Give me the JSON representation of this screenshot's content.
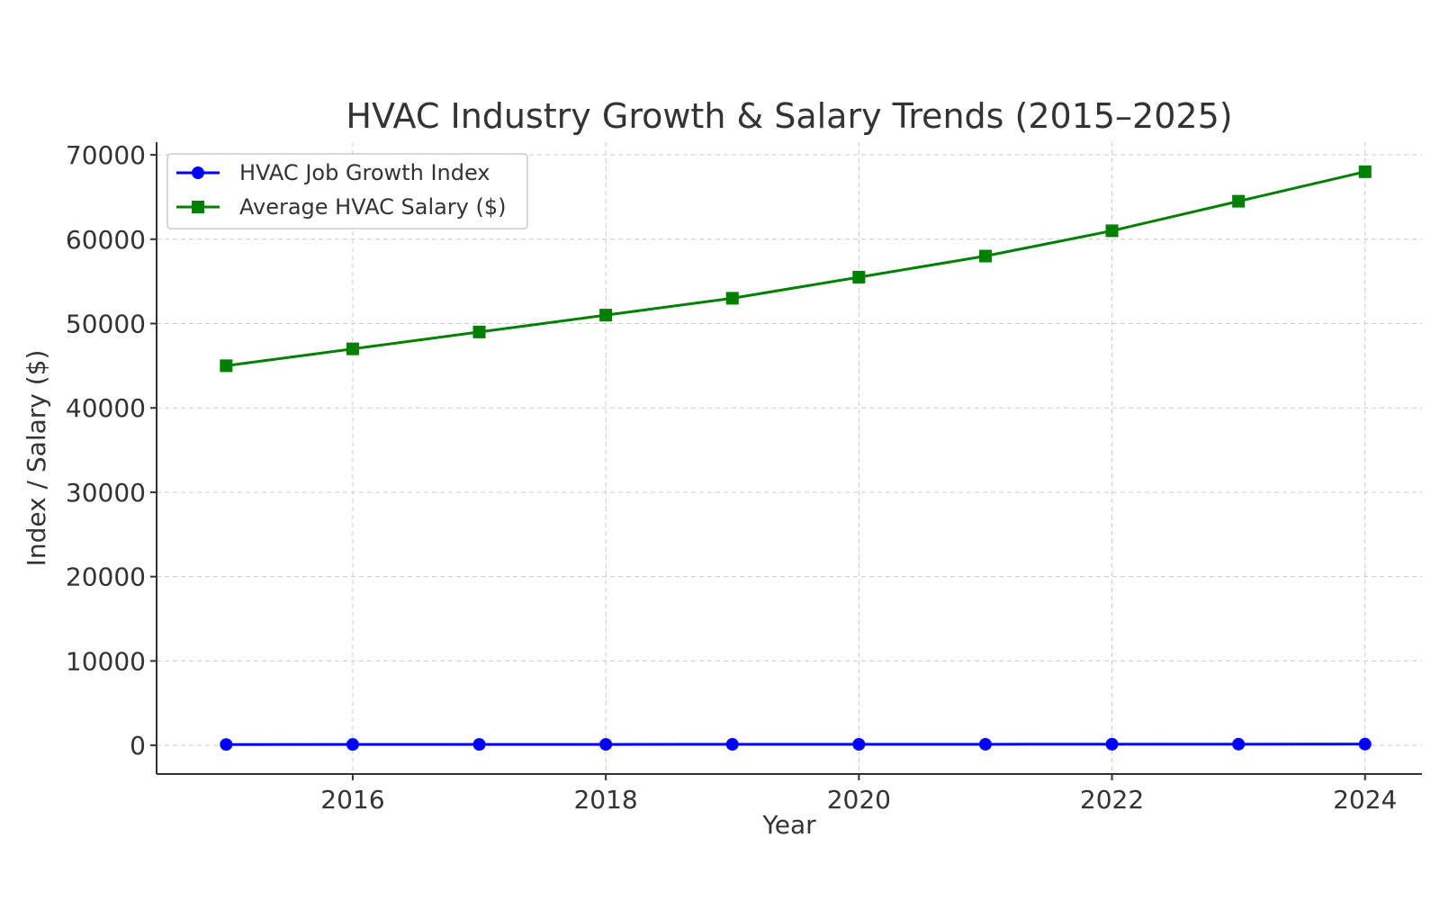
{
  "chart_data": {
    "type": "line",
    "title": "HVAC Industry Growth & Salary Trends (2015–2025)",
    "xlabel": "Year",
    "ylabel": "Index / Salary ($)",
    "x": [
      2015,
      2016,
      2017,
      2018,
      2019,
      2020,
      2021,
      2022,
      2023,
      2024
    ],
    "xlim": [
      2014.45,
      2024.45
    ],
    "ylim": [
      -3400,
      71500
    ],
    "x_ticks": [
      2016,
      2018,
      2020,
      2022,
      2024
    ],
    "y_ticks": [
      0,
      10000,
      20000,
      30000,
      40000,
      50000,
      60000,
      70000
    ],
    "grid": true,
    "legend_position": "top-left",
    "series": [
      {
        "name": "HVAC Job Growth Index",
        "color": "#0000ff",
        "marker": "circle",
        "values": [
          100,
          104,
          108,
          113,
          118,
          121,
          127,
          133,
          139,
          145
        ]
      },
      {
        "name": "Average HVAC Salary ($)",
        "color": "#008000",
        "marker": "square",
        "values": [
          45000,
          47000,
          49000,
          51000,
          53000,
          55500,
          58000,
          61000,
          64500,
          68000
        ]
      }
    ]
  }
}
